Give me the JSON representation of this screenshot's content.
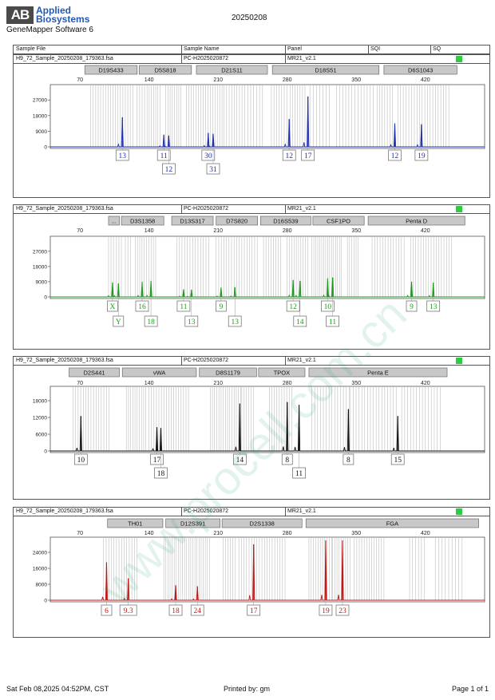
{
  "header": {
    "brand_mark": "AB",
    "brand_line1": "Applied",
    "brand_line2": "Biosystems",
    "software": "GeneMapper Software 6",
    "date_code": "20250208",
    "columns": [
      "Sample File",
      "Sample Name",
      "Panel",
      "SQI",
      "SQ"
    ]
  },
  "footer": {
    "printed_at": "Sat Feb 08,2025 04:52PM, CST",
    "printed_by": "Printed by: gm",
    "page": "Page 1 of 1"
  },
  "watermark": "www.procell.com.cn",
  "colors": {
    "blue": "#1f2fb0",
    "green": "#1b9a1b",
    "black": "#111111",
    "red": "#c01818",
    "status": "#2ecc40"
  },
  "chart_data": [
    {
      "type": "line",
      "sample_file": "H9_72_Sample_20250208_179363.fsa",
      "sample_name": "PC-H2025020872",
      "panel": "MR21_v2.1",
      "dye": "blue",
      "x_ticks": [
        70,
        140,
        210,
        280,
        350,
        420
      ],
      "y_ticks": [
        0,
        9000,
        18000,
        27000
      ],
      "ylim": [
        0,
        34000
      ],
      "xlim": [
        40,
        480
      ],
      "markers": [
        {
          "name": "D19S433",
          "start": 75,
          "end": 128
        },
        {
          "name": "D5S818",
          "start": 130,
          "end": 183
        },
        {
          "name": "D21S11",
          "start": 188,
          "end": 260
        },
        {
          "name": "D18S51",
          "start": 265,
          "end": 373
        },
        {
          "name": "D6S1043",
          "start": 378,
          "end": 452
        }
      ],
      "peaks": [
        {
          "x": 113,
          "height": 17000,
          "alleles": [
            "13"
          ]
        },
        {
          "x": 155,
          "height": 7000,
          "alleles": [
            "11"
          ]
        },
        {
          "x": 160,
          "height": 6500,
          "alleles": [
            "12"
          ]
        },
        {
          "x": 200,
          "height": 8000,
          "alleles": [
            "30"
          ]
        },
        {
          "x": 205,
          "height": 7500,
          "alleles": [
            "31"
          ]
        },
        {
          "x": 282,
          "height": 16000,
          "alleles": [
            "12"
          ]
        },
        {
          "x": 301,
          "height": 29000,
          "alleles": [
            "17"
          ]
        },
        {
          "x": 389,
          "height": 13500,
          "alleles": [
            "12"
          ]
        },
        {
          "x": 416,
          "height": 13000,
          "alleles": [
            "19"
          ]
        }
      ],
      "bins": [
        [
          81,
          124,
          2.5
        ],
        [
          128,
          136,
          2.5
        ],
        [
          138,
          152,
          2.2
        ],
        [
          157,
          174,
          2.2
        ],
        [
          178,
          214,
          2.4
        ],
        [
          216,
          237,
          2.6
        ],
        [
          240,
          257,
          3.0
        ],
        [
          264,
          280,
          2.6
        ],
        [
          283,
          300,
          2.5
        ],
        [
          303,
          325,
          3.3
        ],
        [
          330,
          370,
          3.1
        ],
        [
          371,
          388,
          2.6
        ],
        [
          392,
          412,
          2.8
        ],
        [
          414,
          445,
          2.7
        ]
      ]
    },
    {
      "type": "line",
      "sample_file": "H9_72_Sample_20250208_179363.fsa",
      "sample_name": "PC-H2025020872",
      "panel": "MR21_v2.1",
      "dye": "green",
      "x_ticks": [
        70,
        140,
        210,
        280,
        350,
        420
      ],
      "y_ticks": [
        0,
        9000,
        18000,
        27000
      ],
      "ylim": [
        0,
        34000
      ],
      "xlim": [
        40,
        480
      ],
      "markers": [
        {
          "name": "...",
          "start": 99,
          "end": 110
        },
        {
          "name": "D3S1358",
          "start": 112,
          "end": 155
        },
        {
          "name": "D13S317",
          "start": 163,
          "end": 205
        },
        {
          "name": "D7S820",
          "start": 208,
          "end": 250
        },
        {
          "name": "D16S539",
          "start": 253,
          "end": 304
        },
        {
          "name": "CSF1PO",
          "start": 306,
          "end": 358
        },
        {
          "name": "Penta D",
          "start": 362,
          "end": 460
        }
      ],
      "peaks": [
        {
          "x": 103,
          "height": 8500,
          "alleles": [
            "X"
          ]
        },
        {
          "x": 109,
          "height": 8000,
          "alleles": [
            "Y"
          ]
        },
        {
          "x": 133,
          "height": 9000,
          "alleles": [
            "16"
          ]
        },
        {
          "x": 142,
          "height": 9500,
          "alleles": [
            "18"
          ]
        },
        {
          "x": 175,
          "height": 4500,
          "alleles": [
            "11"
          ]
        },
        {
          "x": 183,
          "height": 4300,
          "alleles": [
            "13"
          ]
        },
        {
          "x": 213,
          "height": 5500,
          "alleles": [
            "9"
          ]
        },
        {
          "x": 227,
          "height": 5700,
          "alleles": [
            "13"
          ]
        },
        {
          "x": 286,
          "height": 10000,
          "alleles": [
            "12"
          ]
        },
        {
          "x": 293,
          "height": 9500,
          "alleles": [
            "14"
          ]
        },
        {
          "x": 321,
          "height": 11000,
          "alleles": [
            "10"
          ]
        },
        {
          "x": 326,
          "height": 11500,
          "alleles": [
            "11"
          ]
        },
        {
          "x": 406,
          "height": 9000,
          "alleles": [
            "9"
          ]
        },
        {
          "x": 428,
          "height": 8500,
          "alleles": [
            "13"
          ]
        }
      ],
      "bins": [
        [
          99,
          106,
          2.5
        ],
        [
          107,
          112,
          2.5
        ],
        [
          116,
          122,
          2.6
        ],
        [
          126,
          148,
          2.3
        ],
        [
          168,
          203,
          2.7
        ],
        [
          208,
          250,
          2.6
        ],
        [
          256,
          275,
          2.5
        ],
        [
          280,
          302,
          2.3
        ],
        [
          305,
          335,
          2.0
        ],
        [
          341,
          352,
          2.2
        ],
        [
          366,
          400,
          2.7
        ],
        [
          405,
          447,
          2.6
        ]
      ]
    },
    {
      "type": "line",
      "sample_file": "H9_72_Sample_20250208_179363.fsa",
      "sample_name": "PC-H2025020872",
      "panel": "MR21_v2.1",
      "dye": "black",
      "x_ticks": [
        70,
        140,
        210,
        280,
        350,
        420
      ],
      "y_ticks": [
        0,
        6000,
        12000,
        18000
      ],
      "ylim": [
        0,
        22000
      ],
      "xlim": [
        40,
        480
      ],
      "markers": [
        {
          "name": "D2S441",
          "start": 59,
          "end": 110
        },
        {
          "name": "vWA",
          "start": 113,
          "end": 188
        },
        {
          "name": "D8S1179",
          "start": 191,
          "end": 249
        },
        {
          "name": "TPOX",
          "start": 251,
          "end": 298
        },
        {
          "name": "Penta E",
          "start": 302,
          "end": 442
        }
      ],
      "peaks": [
        {
          "x": 71,
          "height": 12500,
          "alleles": [
            "10"
          ]
        },
        {
          "x": 148,
          "height": 8500,
          "alleles": [
            "17"
          ]
        },
        {
          "x": 152,
          "height": 8200,
          "alleles": [
            "18"
          ]
        },
        {
          "x": 232,
          "height": 17000,
          "alleles": [
            "14"
          ]
        },
        {
          "x": 280,
          "height": 17500,
          "alleles": [
            "8"
          ]
        },
        {
          "x": 292,
          "height": 16500,
          "alleles": [
            "11"
          ]
        },
        {
          "x": 342,
          "height": 15000,
          "alleles": [
            "8"
          ]
        },
        {
          "x": 392,
          "height": 12500,
          "alleles": [
            "15"
          ]
        }
      ],
      "bins": [
        [
          63,
          100,
          2.6
        ],
        [
          117,
          137,
          2.2
        ],
        [
          140,
          182,
          2.5
        ],
        [
          202,
          233,
          2.2
        ],
        [
          234,
          246,
          2.4
        ],
        [
          262,
          286,
          2.5
        ],
        [
          305,
          343,
          2.9
        ],
        [
          344,
          392,
          2.9
        ],
        [
          396,
          436,
          3.0
        ]
      ]
    },
    {
      "type": "line",
      "sample_file": "H9_72_Sample_20250208_179363.fsa",
      "sample_name": "PC-H2025020872",
      "panel": "MR21_v2.1",
      "dye": "red",
      "x_ticks": [
        70,
        140,
        210,
        280,
        350,
        420
      ],
      "y_ticks": [
        0,
        8000,
        16000,
        24000
      ],
      "ylim": [
        0,
        30000
      ],
      "xlim": [
        40,
        480
      ],
      "markers": [
        {
          "name": "TH01",
          "start": 98,
          "end": 154
        },
        {
          "name": "D12S391",
          "start": 157,
          "end": 212
        },
        {
          "name": "D2S1338",
          "start": 214,
          "end": 295
        },
        {
          "name": "FGA",
          "start": 299,
          "end": 474
        }
      ],
      "peaks": [
        {
          "x": 97,
          "height": 19000,
          "alleles": [
            "6"
          ]
        },
        {
          "x": 119,
          "height": 11000,
          "alleles": [
            "9.3"
          ]
        },
        {
          "x": 167,
          "height": 7500,
          "alleles": [
            "18"
          ]
        },
        {
          "x": 189,
          "height": 7000,
          "alleles": [
            "24"
          ]
        },
        {
          "x": 246,
          "height": 28000,
          "alleles": [
            "17"
          ]
        },
        {
          "x": 319,
          "height": 30000,
          "alleles": [
            "19"
          ]
        },
        {
          "x": 336,
          "height": 30000,
          "alleles": [
            "23"
          ]
        }
      ],
      "bins": [
        [
          94,
          130,
          2.6
        ],
        [
          155,
          203,
          2.1
        ],
        [
          215,
          228,
          2.5
        ],
        [
          231,
          280,
          2.6
        ],
        [
          302,
          325,
          2.3
        ],
        [
          326,
          345,
          2.2
        ],
        [
          348,
          380,
          2.5
        ],
        [
          404,
          420,
          3.0
        ],
        [
          430,
          460,
          3.4
        ]
      ]
    }
  ]
}
